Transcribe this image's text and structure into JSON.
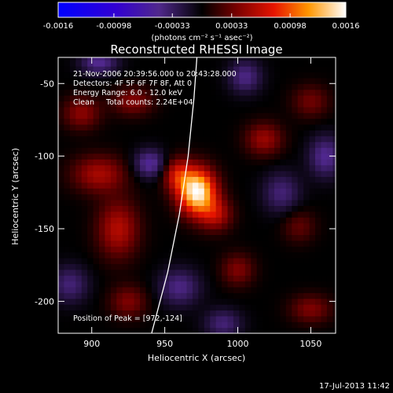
{
  "chart_data": {
    "type": "heatmap",
    "title": "Reconstructed RHESSI Image",
    "xlabel": "Heliocentric X (arcsec)",
    "ylabel": "Heliocentric Y (arcsec)",
    "xlim": [
      877,
      1067
    ],
    "ylim": [
      -222,
      -32
    ],
    "x_ticks": [
      900,
      950,
      1000,
      1050
    ],
    "y_ticks": [
      -50,
      -100,
      -150,
      -200
    ],
    "grid": false,
    "colorbar": {
      "ticks": [
        "-0.0016",
        "-0.00098",
        "-0.00033",
        "0.00033",
        "0.00098",
        "0.0016"
      ],
      "tick_values": [
        -0.0016,
        -0.00098,
        -0.00033,
        0.00033,
        0.00098,
        0.0016
      ],
      "range": [
        -0.0016,
        0.0016
      ],
      "unit_label": "(photons cm⁻² s⁻¹ asec⁻²)"
    },
    "annotations": [
      "21-Nov-2006 20:39:56.000 to 20:43:28.000",
      "Detectors: 4F 5F 6F 7F 8F, Att 0",
      "Energy Range: 6.0 - 12.0 keV",
      "Clean     Total counts: 2.24E+04"
    ],
    "peak_label": "Position of Peak = [972,-124]",
    "peak": {
      "x": 972,
      "y": -124
    },
    "limb_curve": [
      [
        941,
        -222
      ],
      [
        952,
        -180
      ],
      [
        960,
        -140
      ],
      [
        966,
        -100
      ],
      [
        970,
        -60
      ],
      [
        972,
        -32
      ]
    ],
    "sources": [
      {
        "x": 972,
        "y": -124,
        "sx": 9,
        "sy": 11,
        "amp": 0.0016
      },
      {
        "x": 958,
        "y": -112,
        "sx": 7,
        "sy": 8,
        "amp": 0.0006
      },
      {
        "x": 985,
        "y": -140,
        "sx": 8,
        "sy": 8,
        "amp": 0.00055
      },
      {
        "x": 905,
        "y": -112,
        "sx": 13,
        "sy": 9,
        "amp": 0.00055
      },
      {
        "x": 918,
        "y": -150,
        "sx": 10,
        "sy": 14,
        "amp": 0.0006
      },
      {
        "x": 893,
        "y": -70,
        "sx": 9,
        "sy": 8,
        "amp": 0.00045
      },
      {
        "x": 928,
        "y": -62,
        "sx": 10,
        "sy": 7,
        "amp": 0.00042
      },
      {
        "x": 1018,
        "y": -88,
        "sx": 9,
        "sy": 8,
        "amp": 0.0005
      },
      {
        "x": 1050,
        "y": -62,
        "sx": 9,
        "sy": 8,
        "amp": 0.00035
      },
      {
        "x": 1000,
        "y": -178,
        "sx": 8,
        "sy": 8,
        "amp": 0.0004
      },
      {
        "x": 925,
        "y": -200,
        "sx": 9,
        "sy": 8,
        "amp": 0.0004
      },
      {
        "x": 1050,
        "y": -205,
        "sx": 10,
        "sy": 7,
        "amp": 0.0004
      },
      {
        "x": 1042,
        "y": -148,
        "sx": 8,
        "sy": 8,
        "amp": 0.0003
      },
      {
        "x": 940,
        "y": -105,
        "sx": 8,
        "sy": 7,
        "amp": -0.00055
      },
      {
        "x": 905,
        "y": -35,
        "sx": 9,
        "sy": 6,
        "amp": -0.0005
      },
      {
        "x": 1060,
        "y": -100,
        "sx": 8,
        "sy": 10,
        "amp": -0.0005
      },
      {
        "x": 960,
        "y": -190,
        "sx": 10,
        "sy": 9,
        "amp": -0.00045
      },
      {
        "x": 1030,
        "y": -125,
        "sx": 9,
        "sy": 10,
        "amp": -0.0004
      },
      {
        "x": 885,
        "y": -188,
        "sx": 9,
        "sy": 9,
        "amp": -0.0004
      },
      {
        "x": 1005,
        "y": -45,
        "sx": 8,
        "sy": 8,
        "amp": -0.00045
      },
      {
        "x": 990,
        "y": -215,
        "sx": 9,
        "sy": 7,
        "amp": -0.0004
      }
    ]
  },
  "footer": {
    "timestamp": "17-Jul-2013 11:42"
  }
}
